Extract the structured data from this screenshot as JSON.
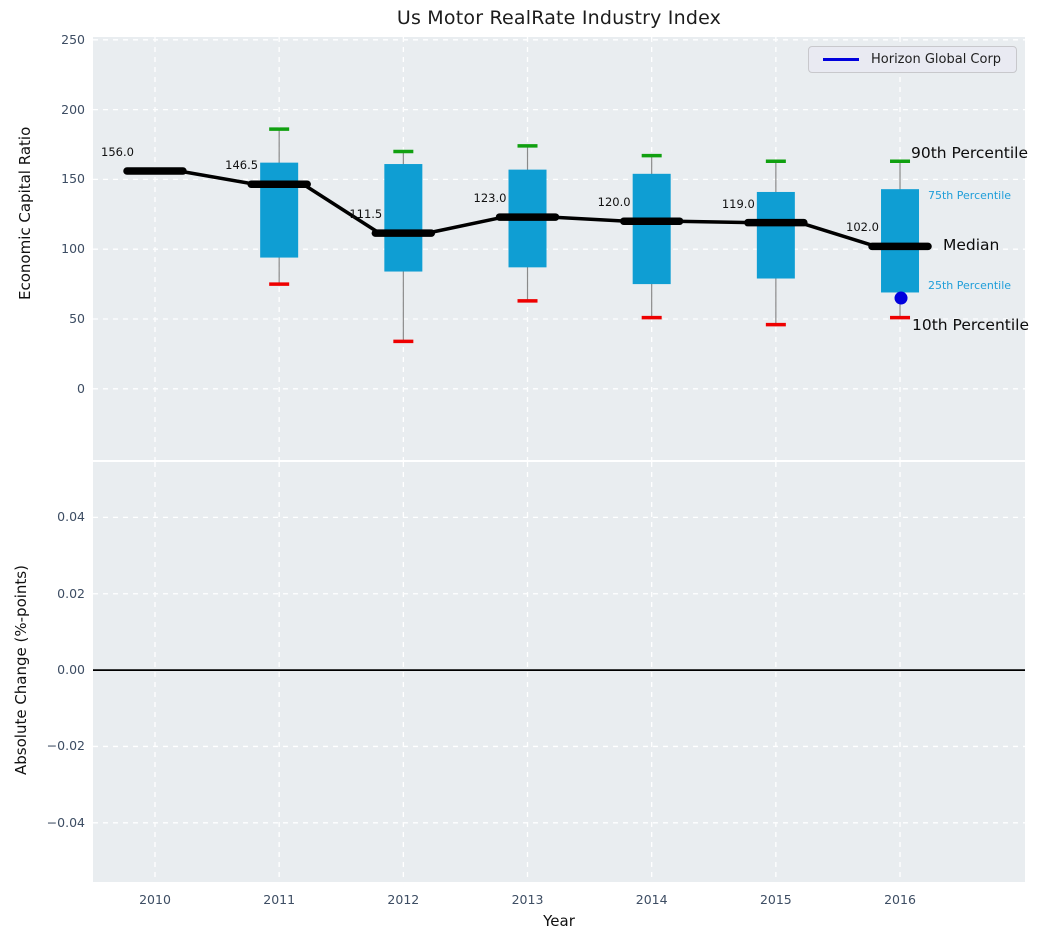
{
  "title": "Us Motor RealRate Industry Index",
  "legend": {
    "label": "Horizon Global Corp"
  },
  "annotations": {
    "p90": "90th Percentile",
    "p75": "75th Percentile",
    "median": "Median",
    "p25": "25th Percentile",
    "p10": "10th Percentile"
  },
  "colors": {
    "box_fill": "#0f9ed3",
    "percentile_label_blue": "#1f9ed9",
    "median_line": "#000000",
    "p90_cap_green": "#10a010",
    "p10_cap_red": "#ee0000",
    "whisker_gray": "#8a8a8a",
    "company_blue": "#0000dd",
    "grid_white": "#ffffff",
    "plot_bg": "#e9edf0",
    "tick_label": "#3d4d63",
    "zero_line": "#000000"
  },
  "chart_data": [
    {
      "type": "box",
      "title": "Us Motor RealRate Industry Index",
      "xlabel": "Year",
      "ylabel": "Economic Capital Ratio",
      "categories": [
        "2010",
        "2011",
        "2012",
        "2013",
        "2014",
        "2015",
        "2016"
      ],
      "ylim": [
        -51,
        252
      ],
      "yticks": [
        250,
        200,
        150,
        100,
        50,
        0
      ],
      "ytick_labels": [
        "250",
        "200",
        "150",
        "100",
        "50",
        "0"
      ],
      "grid": "white-dashed",
      "legend_entries": [
        "Horizon Global Corp"
      ],
      "legend_position": "upper right",
      "series": [
        {
          "name": "90th Percentile",
          "values": [
            null,
            186,
            170,
            174,
            167,
            163,
            163
          ]
        },
        {
          "name": "75th Percentile",
          "values": [
            null,
            162,
            161,
            157,
            154,
            141,
            143
          ]
        },
        {
          "name": "Median",
          "values": [
            156.0,
            146.5,
            111.5,
            123.0,
            120.0,
            119.0,
            102.0
          ]
        },
        {
          "name": "25th Percentile",
          "values": [
            null,
            94,
            84,
            87,
            75,
            79,
            69
          ]
        },
        {
          "name": "10th Percentile",
          "values": [
            null,
            75,
            34,
            63,
            51,
            46,
            51
          ]
        }
      ],
      "median_labels": [
        "156.0",
        "146.5",
        "111.5",
        "123.0",
        "120.0",
        "119.0",
        "102.0"
      ],
      "company_point": {
        "name": "Horizon Global Corp",
        "category": "2016",
        "value": 65
      }
    },
    {
      "type": "bar",
      "xlabel": "Year",
      "ylabel": "Absolute Change (%-points)",
      "categories": [
        "2010",
        "2011",
        "2012",
        "2013",
        "2014",
        "2015",
        "2016"
      ],
      "ylim": [
        -0.0555,
        0.0545
      ],
      "yticks": [
        0.04,
        0.02,
        0.0,
        -0.02,
        -0.04
      ],
      "ytick_labels": [
        "0.04",
        "0.02",
        "0.00",
        "−0.02",
        "−0.04"
      ],
      "values": [],
      "zero_line": 0.0,
      "grid": "white-dashed"
    }
  ]
}
